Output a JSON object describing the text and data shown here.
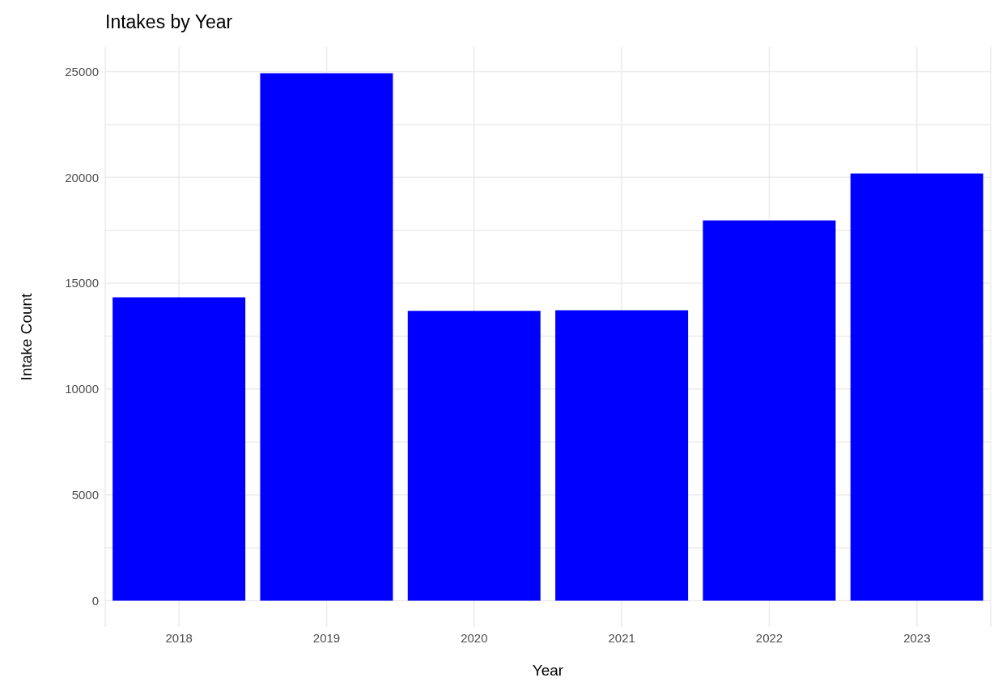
{
  "chart_data": {
    "type": "bar",
    "title": "Intakes by Year",
    "xlabel": "Year",
    "ylabel": "Intake Count",
    "categories": [
      "2018",
      "2019",
      "2020",
      "2021",
      "2022",
      "2023"
    ],
    "values": [
      14330,
      24920,
      13690,
      13720,
      17970,
      20180
    ],
    "color": "#0000ff",
    "ylim": [
      -1246,
      26166
    ],
    "yticks": [
      0,
      {
        "value": 2500,
        "label": null
      },
      5000,
      {
        "value": 7500,
        "label": null
      },
      10000,
      {
        "value": 12500,
        "label": null
      },
      15000,
      {
        "value": 17500,
        "label": null
      },
      20000,
      {
        "value": 22500,
        "label": null
      },
      25000
    ],
    "grid": true
  }
}
